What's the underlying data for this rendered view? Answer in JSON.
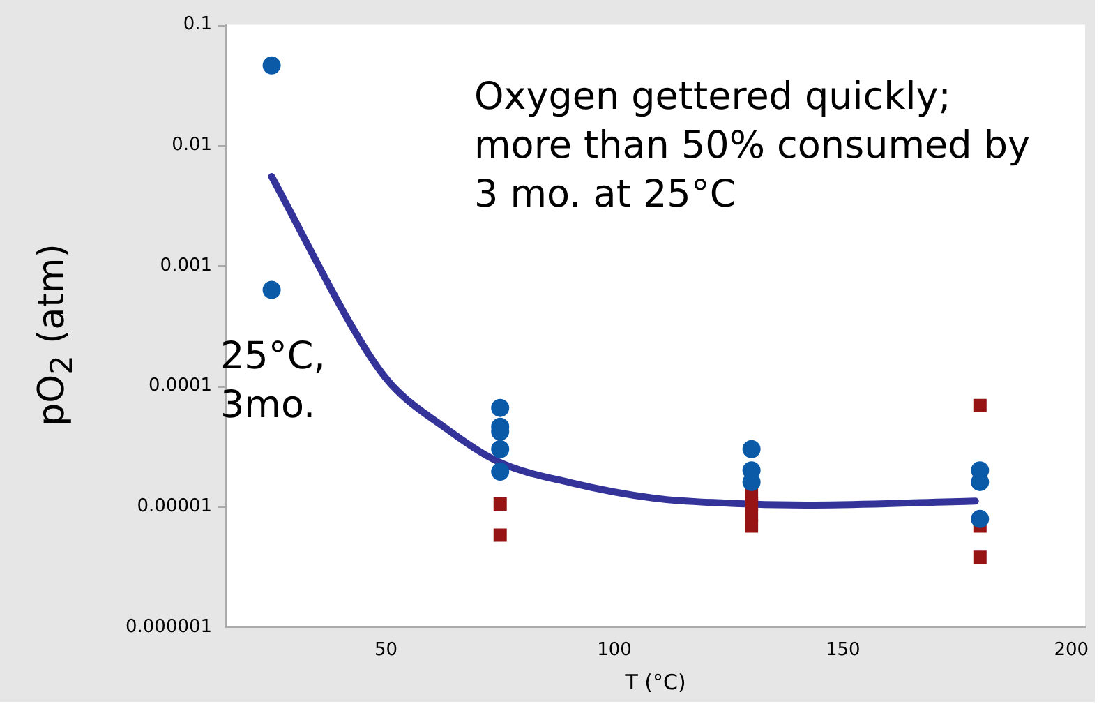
{
  "chart_data": {
    "type": "scatter",
    "xlabel": "T (°C)",
    "ylabel": "pO$_{2}$ (atm)",
    "annotations": [
      "Oxygen gettered quickly; more than 50% consumed by 3 mo. at 25°C",
      "25°C, 3mo."
    ],
    "log": "y",
    "grid": false,
    "legend": false,
    "xlim": [
      15,
      203
    ],
    "xticks": [
      50,
      100,
      150,
      200
    ],
    "ylim": [
      1e-06,
      0.1
    ],
    "yticks": [
      {
        "value": 1e-06,
        "label": "0.000001"
      },
      {
        "value": 1e-05,
        "label": "0.00001"
      },
      0.0001,
      0.001,
      0.01,
      0.1
    ],
    "series": [
      {
        "type": "scatter",
        "marker": "circle",
        "color": "#0a5aa8",
        "x": [
          25,
          25,
          75,
          75,
          75,
          75,
          75,
          130,
          130,
          130,
          180,
          180,
          180
        ],
        "values": [
          0.046,
          0.00063,
          6.6e-05,
          4.6e-05,
          4.2e-05,
          3e-05,
          1.95e-05,
          3e-05,
          2e-05,
          1.6e-05,
          2e-05,
          1.6e-05,
          7.9e-06
        ]
      },
      {
        "type": "scatter",
        "marker": "square",
        "color": "#961414",
        "x": [
          75,
          75,
          130,
          130,
          130,
          130,
          180,
          180,
          180
        ],
        "values": [
          1.05e-05,
          5.8e-06,
          1.27e-05,
          1.05e-05,
          8.5e-06,
          6.9e-06,
          6.9e-05,
          6.9e-06,
          3.8e-06
        ]
      },
      {
        "marker": "none",
        "type": "line",
        "line_style": "solid",
        "color": "#333399",
        "x": [
          25,
          45.3,
          51.2,
          63,
          74.6,
          90.4,
          109,
          130,
          142,
          179
        ],
        "values": [
          0.0055,
          0.00021,
          0.000103,
          4.5e-05,
          2.36e-05,
          1.58e-05,
          1.17e-05,
          1.05e-05,
          1.03e-05,
          1.11e-05
        ]
      }
    ]
  }
}
